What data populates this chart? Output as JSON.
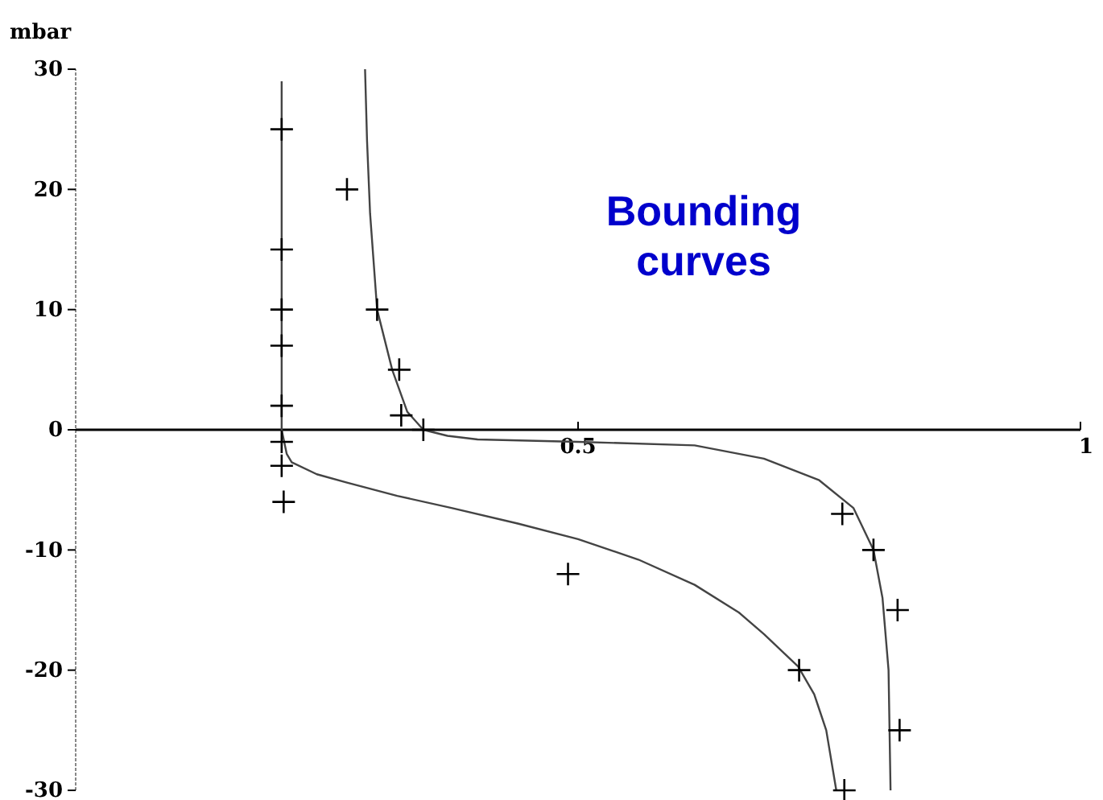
{
  "chart_data": {
    "type": "line",
    "ylabel": "mbar",
    "annotations": [
      "Bounding curves"
    ],
    "xlim": [
      0,
      1
    ],
    "xticks": [
      0.5,
      1
    ],
    "ylim": [
      -30,
      30
    ],
    "yticks": [
      -30,
      -20,
      -10,
      0,
      10,
      20,
      30
    ],
    "grid": false,
    "series": [
      {
        "color": "#444444",
        "x": [
          0.205,
          0.205,
          0.205,
          0.21,
          0.215,
          0.24,
          0.27,
          0.32,
          0.374,
          0.44,
          0.5,
          0.56,
          0.616,
          0.66,
          0.685,
          0.719,
          0.735,
          0.747,
          0.757
        ],
        "values": [
          29,
          10,
          0,
          -2,
          -2.7,
          -3.7,
          -4.4,
          -5.5,
          -6.5,
          -7.8,
          -9.1,
          -10.8,
          -12.9,
          -15.2,
          -17,
          -19.7,
          -22,
          -25,
          -30
        ]
      },
      {
        "color": "#444444",
        "x": [
          0.288,
          0.29,
          0.293,
          0.3,
          0.315,
          0.33,
          0.346,
          0.37,
          0.4,
          0.5,
          0.616,
          0.685,
          0.74,
          0.774,
          0.794,
          0.803,
          0.809,
          0.811
        ],
        "values": [
          30,
          24,
          18,
          10,
          5,
          1.5,
          0,
          -0.5,
          -0.8,
          -1,
          -1.3,
          -2.4,
          -4.2,
          -6.5,
          -10,
          -14,
          -20,
          -30
        ]
      },
      {
        "type": "scatter",
        "marker": "cross",
        "color": "#000000",
        "x": [
          0.205,
          0.205,
          0.205,
          0.205,
          0.205,
          0.205,
          0.205,
          0.207,
          0.27,
          0.3,
          0.322,
          0.324,
          0.346,
          0.49,
          0.72,
          0.765,
          0.763,
          0.794,
          0.818,
          0.82
        ],
        "values": [
          25,
          15,
          10,
          7,
          2,
          -1,
          -3,
          -6,
          20,
          10,
          5,
          1.2,
          0,
          -12,
          -20,
          -30,
          -7,
          -10,
          -15,
          -25
        ]
      }
    ]
  }
}
